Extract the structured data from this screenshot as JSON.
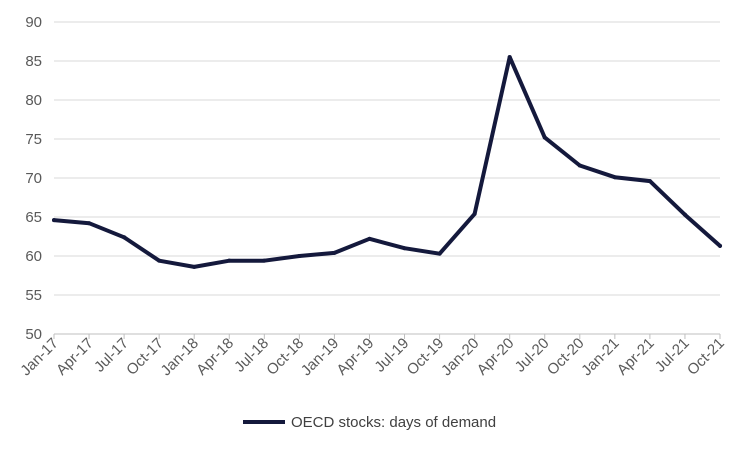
{
  "chart_data": {
    "type": "line",
    "x": [
      "Jan-17",
      "Apr-17",
      "Jul-17",
      "Oct-17",
      "Jan-18",
      "Apr-18",
      "Jul-18",
      "Oct-18",
      "Jan-19",
      "Apr-19",
      "Jul-19",
      "Oct-19",
      "Jan-20",
      "Apr-20",
      "Jul-20",
      "Oct-20",
      "Jan-21",
      "Apr-21",
      "Jul-21",
      "Oct-21"
    ],
    "series": [
      {
        "name": "OECD stocks: days of demand",
        "color": "#14193c",
        "values": [
          64.6,
          64.2,
          62.4,
          59.4,
          58.6,
          59.4,
          59.4,
          60.0,
          60.4,
          62.2,
          61.0,
          60.3,
          65.4,
          85.5,
          75.2,
          71.6,
          70.1,
          69.6,
          65.3,
          61.3
        ]
      }
    ],
    "ylim": [
      50,
      90
    ],
    "yticks": [
      "50",
      "55",
      "60",
      "65",
      "70",
      "75",
      "80",
      "85",
      "90"
    ],
    "grid": true,
    "legend": "bottom-center",
    "title": "",
    "xlabel": "",
    "ylabel": ""
  }
}
